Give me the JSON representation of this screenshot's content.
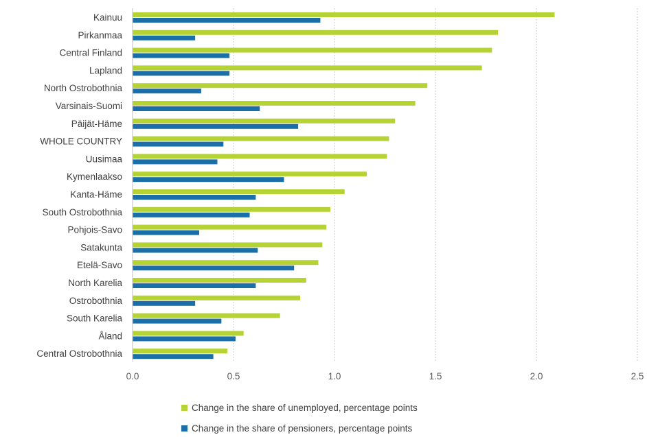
{
  "chart_data": {
    "type": "bar",
    "orientation": "horizontal",
    "categories": [
      "Kainuu",
      "Pirkanmaa",
      "Central Finland",
      "Lapland",
      "North Ostrobothnia",
      "Varsinais-Suomi",
      "Päijät-Häme",
      "WHOLE COUNTRY",
      "Uusimaa",
      "Kymenlaakso",
      "Kanta-Häme",
      "South Ostrobothnia",
      "Pohjois-Savo",
      "Satakunta",
      "Etelä-Savo",
      "North Karelia",
      "Ostrobothnia",
      "South Karelia",
      "Åland",
      "Central Ostrobothnia"
    ],
    "series": [
      {
        "name": "Change in the share of unemployed, percentage points",
        "color": "#b5d334",
        "values": [
          2.09,
          1.81,
          1.78,
          1.73,
          1.46,
          1.4,
          1.3,
          1.27,
          1.26,
          1.16,
          1.05,
          0.98,
          0.96,
          0.94,
          0.92,
          0.86,
          0.83,
          0.73,
          0.55,
          0.47
        ]
      },
      {
        "name": "Change in the share of pensioners, percentage points",
        "color": "#1a6fa8",
        "values": [
          0.93,
          0.31,
          0.48,
          0.48,
          0.34,
          0.63,
          0.82,
          0.45,
          0.42,
          0.75,
          0.61,
          0.58,
          0.33,
          0.62,
          0.8,
          0.61,
          0.31,
          0.44,
          0.51,
          0.4
        ]
      }
    ],
    "xlim": [
      0,
      2.5
    ],
    "x_ticks": [
      "0.0",
      "0.5",
      "1.0",
      "1.5",
      "2.0",
      "2.5"
    ],
    "grid": true,
    "legend_position": "bottom"
  }
}
